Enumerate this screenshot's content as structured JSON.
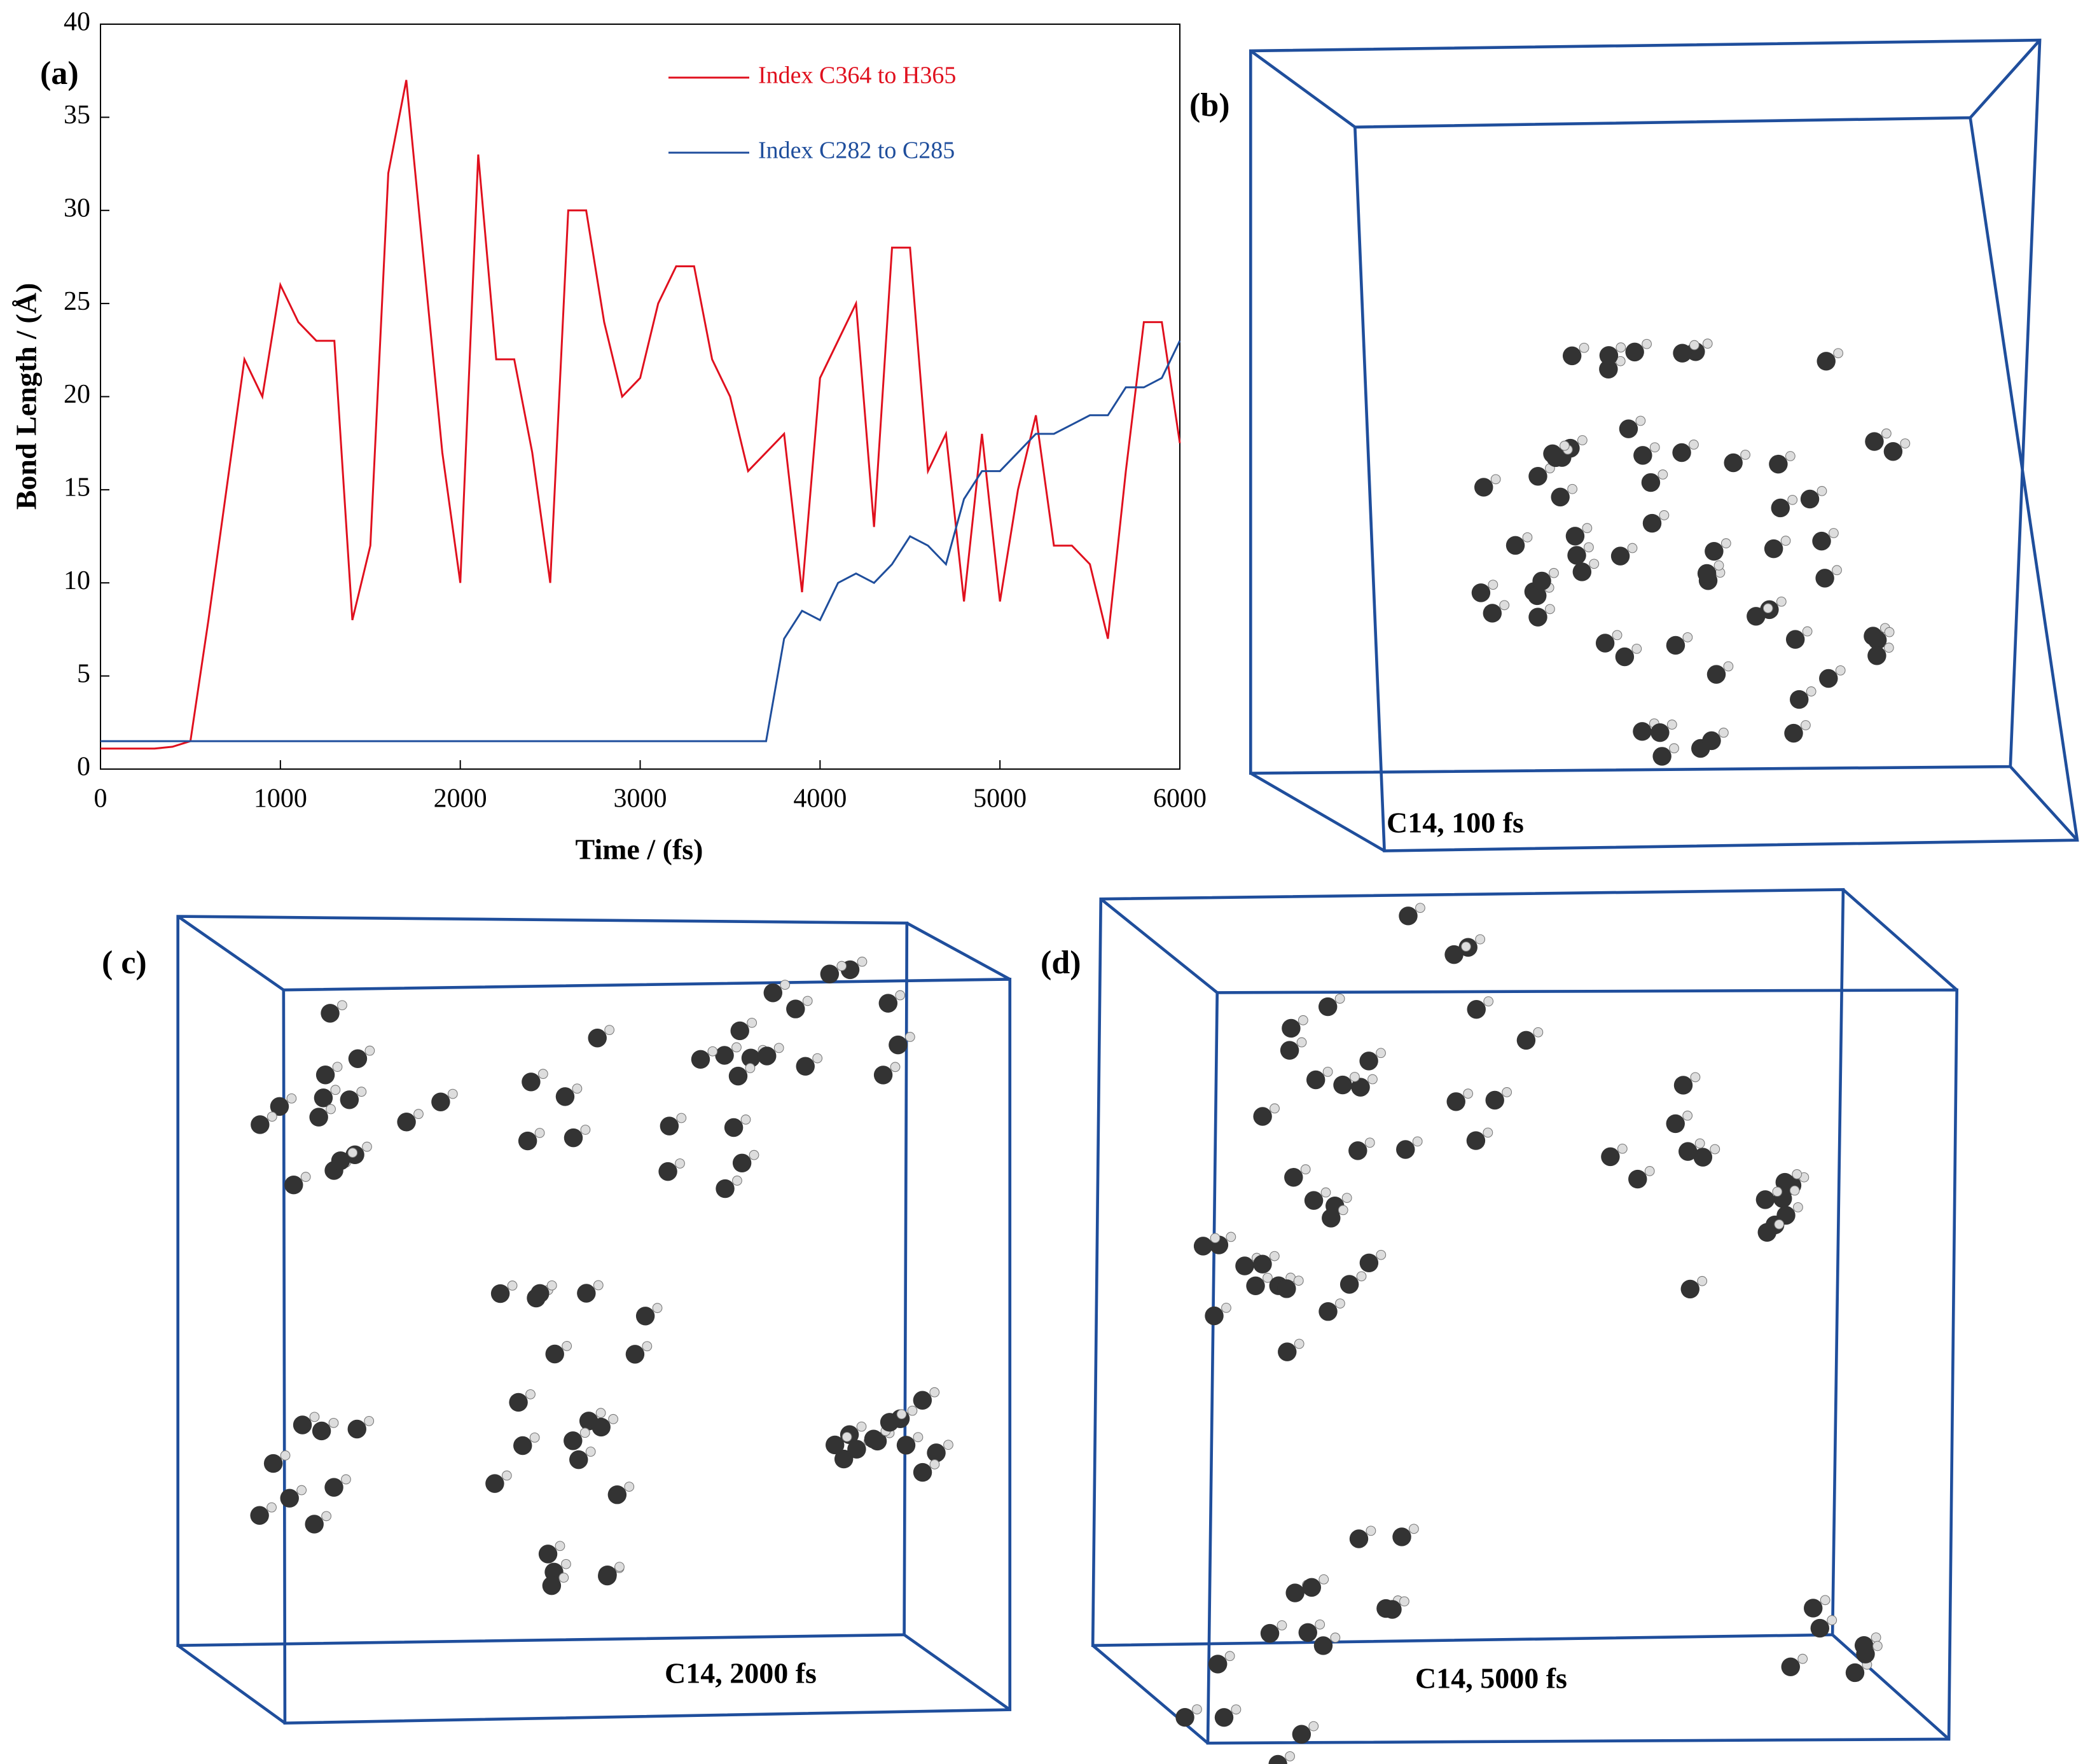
{
  "chart_data": {
    "type": "line",
    "xlabel": "Time / (fs)",
    "ylabel": "Bond Length / (Å)",
    "x": [
      0,
      100,
      200,
      300,
      400,
      500,
      600,
      700,
      800,
      900,
      1000,
      1100,
      1200,
      1300,
      1400,
      1500,
      1600,
      1700,
      1800,
      1900,
      2000,
      2100,
      2200,
      2300,
      2400,
      2500,
      2600,
      2700,
      2800,
      2900,
      3000,
      3100,
      3200,
      3300,
      3400,
      3500,
      3600,
      3700,
      3800,
      3900,
      4000,
      4100,
      4200,
      4300,
      4400,
      4500,
      4600,
      4700,
      4800,
      4900,
      5000,
      5100,
      5200,
      5300,
      5400,
      5500,
      5600,
      5700,
      5800,
      5900,
      6000
    ],
    "series": [
      {
        "name": "Index C364 to H365",
        "color": "#e0101e",
        "values": [
          1.1,
          1.1,
          1.1,
          1.1,
          1.2,
          1.5,
          8,
          15,
          22,
          20,
          26,
          24,
          23,
          23,
          8,
          12,
          32,
          37,
          27,
          17,
          10,
          33,
          22,
          22,
          17,
          10,
          30,
          30,
          24,
          20,
          21,
          25,
          27,
          27,
          22,
          20,
          16,
          17,
          18,
          9.5,
          21,
          23,
          25,
          13,
          28,
          28,
          16,
          18,
          9,
          18,
          9,
          15,
          19,
          12,
          12,
          11,
          7,
          16,
          24,
          24,
          17.5
        ]
      },
      {
        "name": "Index C282 to C285",
        "color": "#1f4e9c",
        "values": [
          1.5,
          1.5,
          1.5,
          1.5,
          1.5,
          1.5,
          1.5,
          1.5,
          1.5,
          1.5,
          1.5,
          1.5,
          1.5,
          1.5,
          1.5,
          1.5,
          1.5,
          1.5,
          1.5,
          1.5,
          1.5,
          1.5,
          1.5,
          1.5,
          1.5,
          1.5,
          1.5,
          1.5,
          1.5,
          1.5,
          1.5,
          1.5,
          1.5,
          1.5,
          1.5,
          1.5,
          1.5,
          1.5,
          7,
          8.5,
          8,
          10,
          10.5,
          10,
          11,
          12.5,
          12,
          11,
          14.5,
          16,
          16,
          17,
          18,
          18,
          18.5,
          19,
          19,
          20.5,
          20.5,
          21,
          23
        ]
      }
    ],
    "xlim": [
      0,
      6000
    ],
    "xticks": [
      0,
      1000,
      2000,
      3000,
      4000,
      5000,
      6000
    ],
    "ylim": [
      0,
      40
    ],
    "yticks": [
      0,
      5,
      10,
      15,
      20,
      25,
      30,
      35,
      40
    ]
  },
  "panels": {
    "a": "(a)",
    "b": "(b)",
    "c": "( c)",
    "d": "(d)"
  },
  "captions": {
    "b": "C14, 100 fs",
    "c": "C14, 2000 fs",
    "d": "C14, 5000 fs"
  }
}
